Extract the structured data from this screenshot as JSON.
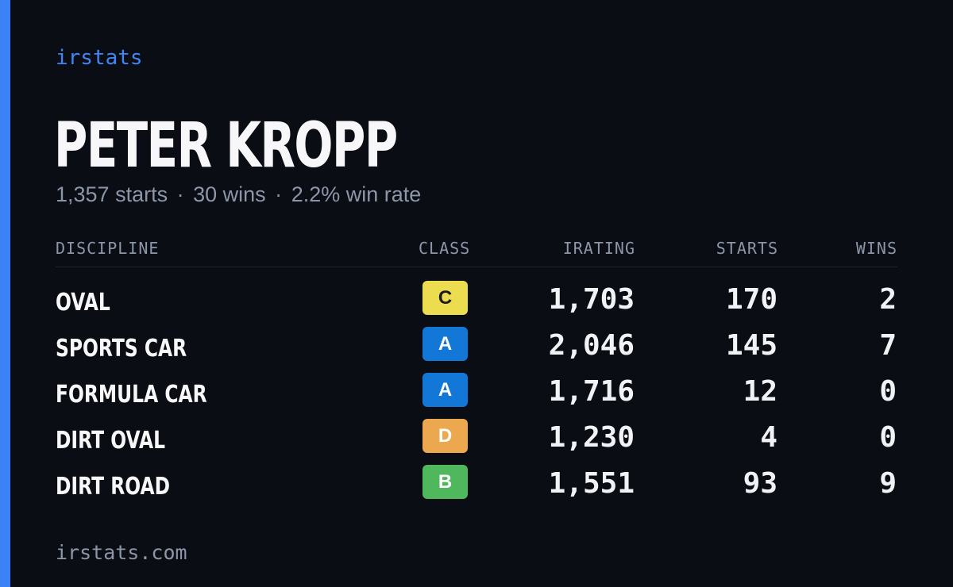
{
  "brand": "irstats",
  "driver": {
    "name": "PETER KROPP",
    "starts": "1,357 starts",
    "wins": "30 wins",
    "win_rate": "2.2% win rate",
    "separator": "·"
  },
  "table": {
    "headers": {
      "discipline": "DISCIPLINE",
      "class": "CLASS",
      "irating": "IRATING",
      "starts": "STARTS",
      "wins": "WINS"
    },
    "rows": [
      {
        "discipline": "OVAL",
        "class": "C",
        "class_bg": "#ecdc4f",
        "class_fg": "#1a1a1a",
        "irating": "1,703",
        "starts": "170",
        "wins": "2"
      },
      {
        "discipline": "SPORTS CAR",
        "class": "A",
        "class_bg": "#1277d6",
        "class_fg": "#ffffff",
        "irating": "2,046",
        "starts": "145",
        "wins": "7"
      },
      {
        "discipline": "FORMULA CAR",
        "class": "A",
        "class_bg": "#1277d6",
        "class_fg": "#ffffff",
        "irating": "1,716",
        "starts": "12",
        "wins": "0"
      },
      {
        "discipline": "DIRT OVAL",
        "class": "D",
        "class_bg": "#eca84f",
        "class_fg": "#ffffff",
        "irating": "1,230",
        "starts": "4",
        "wins": "0"
      },
      {
        "discipline": "DIRT ROAD",
        "class": "B",
        "class_bg": "#4fb85d",
        "class_fg": "#ffffff",
        "irating": "1,551",
        "starts": "93",
        "wins": "9"
      }
    ]
  },
  "footer": "irstats.com",
  "colors": {
    "background": "#0b0d14",
    "accent": "#3b82f6",
    "muted": "#8d96a8",
    "text": "#f7f7fa"
  }
}
